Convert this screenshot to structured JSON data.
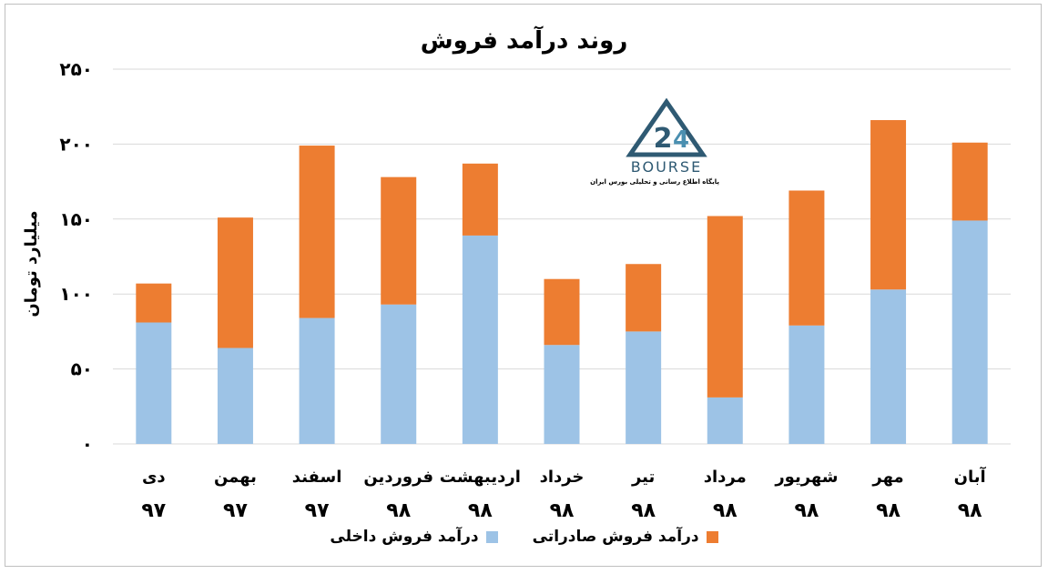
{
  "chart_data": {
    "type": "bar",
    "stacked": true,
    "title": "روند درآمد فروش",
    "ylabel": "میلیارد تومان",
    "ylim": [
      0,
      250
    ],
    "yticks": [
      "۰",
      "۵۰",
      "۱۰۰",
      "۱۵۰",
      "۲۰۰",
      "۲۵۰"
    ],
    "ytick_values": [
      0,
      50,
      100,
      150,
      200,
      250
    ],
    "grid": true,
    "legend_position": "bottom",
    "categories": [
      {
        "month": "دی",
        "year": "۹۷"
      },
      {
        "month": "بهمن",
        "year": "۹۷"
      },
      {
        "month": "اسفند",
        "year": "۹۷"
      },
      {
        "month": "فروردین",
        "year": "۹۸"
      },
      {
        "month": "اردیبهشت",
        "year": "۹۸"
      },
      {
        "month": "خرداد",
        "year": "۹۸"
      },
      {
        "month": "تیر",
        "year": "۹۸"
      },
      {
        "month": "مرداد",
        "year": "۹۸"
      },
      {
        "month": "شهریور",
        "year": "۹۸"
      },
      {
        "month": "مهر",
        "year": "۹۸"
      },
      {
        "month": "آبان",
        "year": "۹۸"
      }
    ],
    "series": [
      {
        "name": "درآمد فروش داخلی",
        "color": "#9dc3e6",
        "values": [
          81,
          64,
          84,
          93,
          139,
          66,
          75,
          31,
          79,
          103,
          149
        ]
      },
      {
        "name": "درآمد فروش صادراتی",
        "color": "#ed7d31",
        "values": [
          26,
          87,
          115,
          85,
          48,
          44,
          45,
          121,
          90,
          113,
          52
        ]
      }
    ]
  },
  "logo": {
    "name": "BOURSE",
    "tagline": "پایگاه اطلاع رسانی و تحلیلی بورس ایران"
  }
}
